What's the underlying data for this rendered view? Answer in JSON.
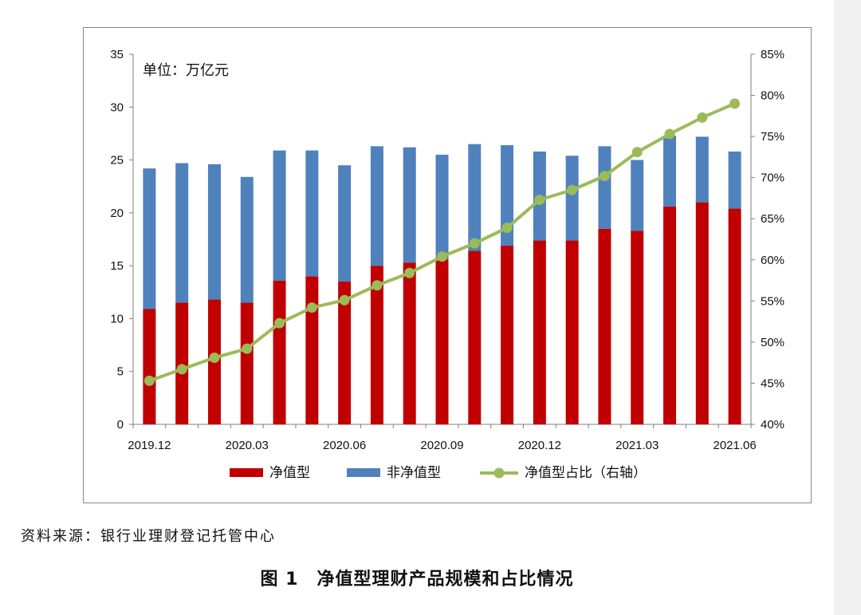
{
  "chart_data": {
    "type": "bar",
    "stacked": true,
    "unit_label": "单位：万亿元",
    "x_tick_labels": [
      "2019.12",
      "2020.03",
      "2020.06",
      "2020.09",
      "2020.12",
      "2021.03",
      "2021.06"
    ],
    "categories": [
      "2019.12",
      "2020.01",
      "2020.02",
      "2020.03",
      "2020.04",
      "2020.05",
      "2020.06",
      "2020.07",
      "2020.08",
      "2020.09",
      "2020.10",
      "2020.11",
      "2020.12",
      "2021.01",
      "2021.02",
      "2021.03",
      "2021.04",
      "2021.05",
      "2021.06"
    ],
    "ylim": [
      0,
      35
    ],
    "y_ticks": [
      0,
      5,
      10,
      15,
      20,
      25,
      30,
      35
    ],
    "y2lim": [
      40,
      85
    ],
    "y2_ticks": [
      "40%",
      "45%",
      "50%",
      "55%",
      "60%",
      "65%",
      "70%",
      "75%",
      "80%",
      "85%"
    ],
    "series": [
      {
        "name": "净值型",
        "type": "bar",
        "color": "#C00000",
        "values": [
          10.9,
          11.5,
          11.8,
          11.5,
          13.6,
          14.0,
          13.5,
          15.0,
          15.3,
          15.6,
          16.4,
          16.9,
          17.4,
          17.4,
          18.5,
          18.3,
          20.6,
          21.0,
          20.4
        ]
      },
      {
        "name": "非净值型",
        "type": "bar",
        "color": "#4F81BD",
        "values": [
          13.3,
          13.2,
          12.8,
          11.9,
          12.3,
          11.9,
          11.0,
          11.3,
          10.9,
          9.9,
          10.1,
          9.5,
          8.4,
          8.0,
          7.8,
          6.7,
          6.7,
          6.2,
          5.4
        ]
      },
      {
        "name": "净值型占比（右轴）",
        "type": "line",
        "axis": "right",
        "color": "#9BBB59",
        "values": [
          45.3,
          46.7,
          48.1,
          49.2,
          52.3,
          54.2,
          55.1,
          56.9,
          58.4,
          60.4,
          62.0,
          63.9,
          67.3,
          68.5,
          70.2,
          73.1,
          75.3,
          77.3,
          79.0
        ]
      }
    ],
    "legend_position": "bottom",
    "grid": false
  },
  "source_note": "资料来源：银行业理财登记托管中心",
  "figure_caption": "图 1　净值型理财产品规模和占比情况"
}
